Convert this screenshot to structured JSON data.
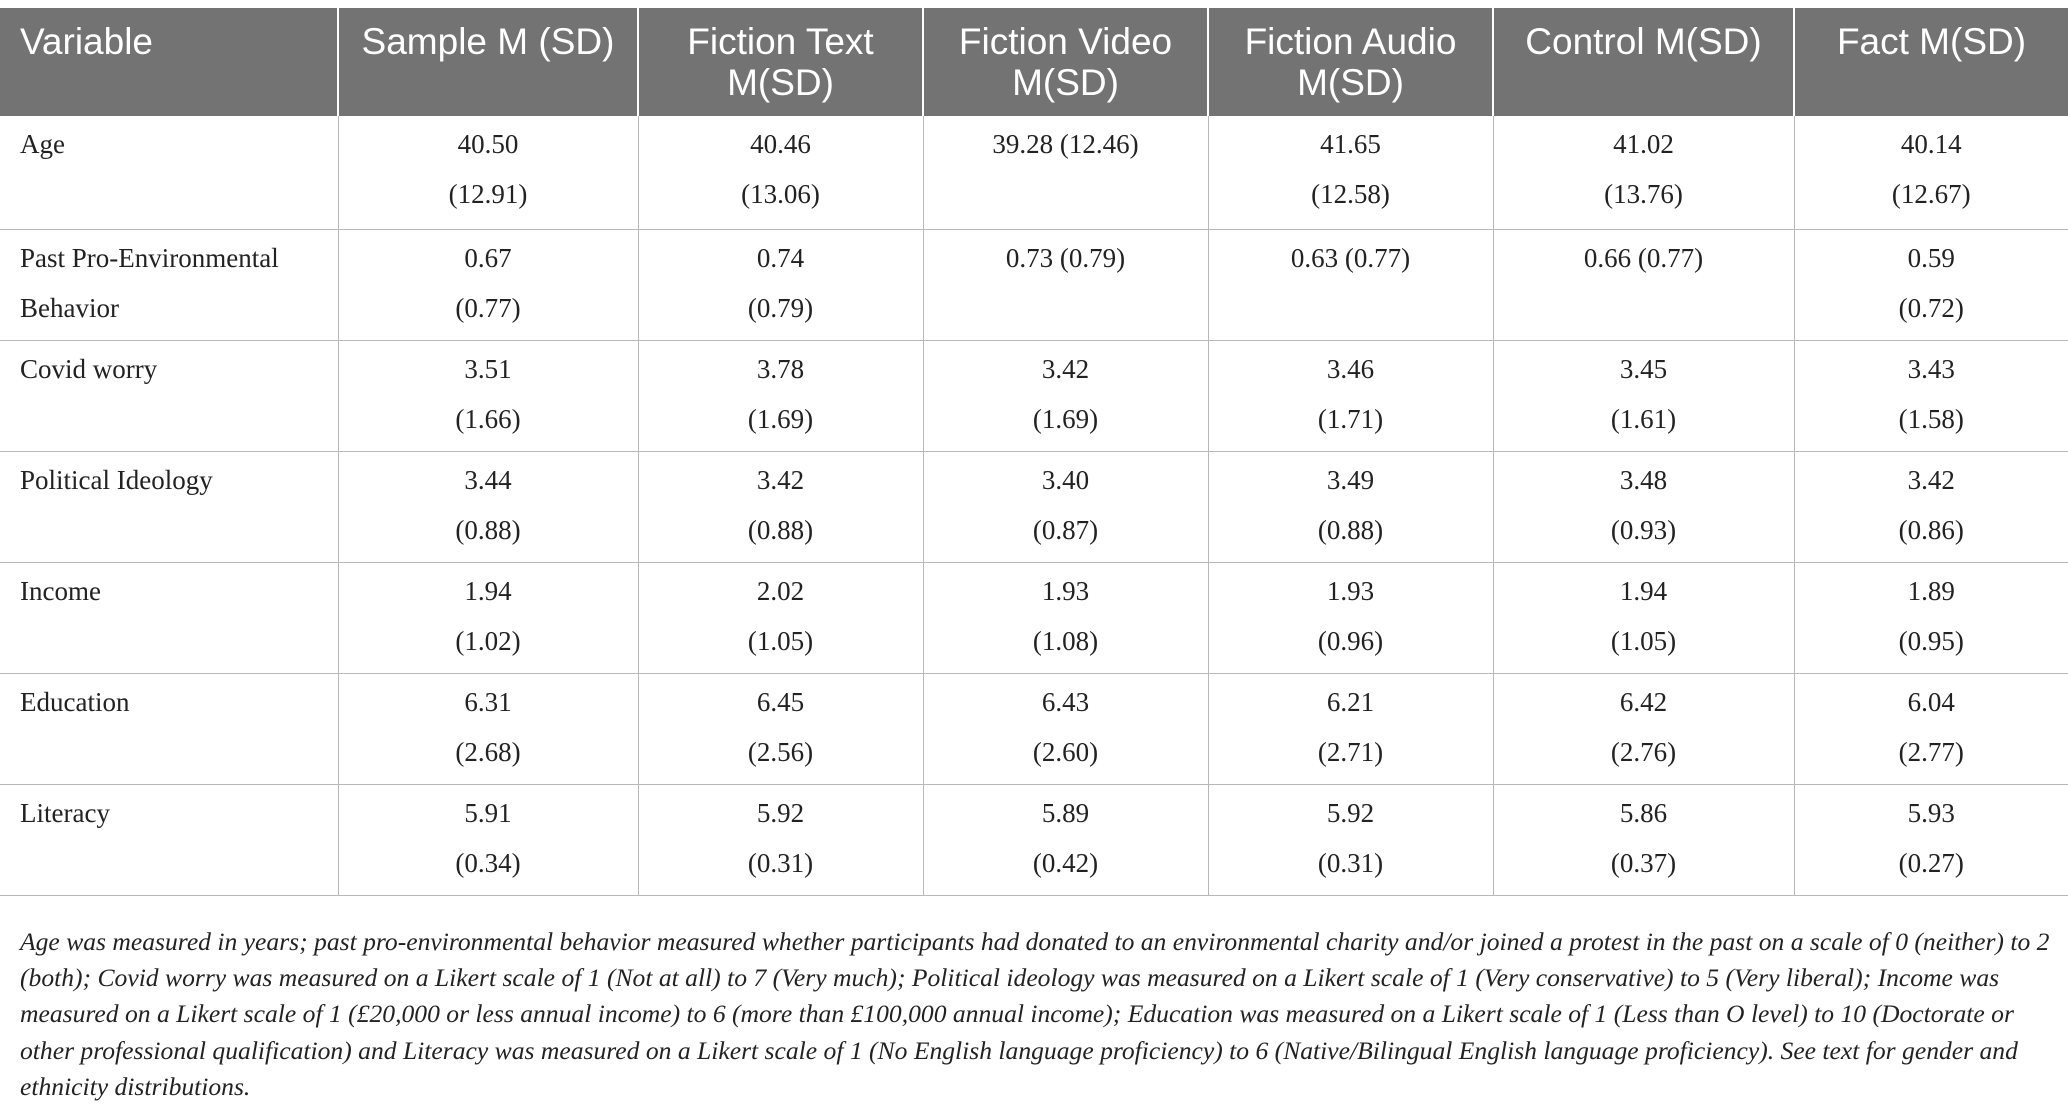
{
  "table": {
    "headers": [
      "Variable",
      "Sample M (SD)",
      "Fiction Text M(SD)",
      "Fiction Video M(SD)",
      "Fiction Audio M(SD)",
      "Control M(SD)",
      "Fact M(SD)"
    ],
    "rows": [
      {
        "label": "Age",
        "cells": [
          [
            "40.50",
            "(12.91)"
          ],
          [
            "40.46",
            "(13.06)"
          ],
          [
            "39.28 (12.46)"
          ],
          [
            "41.65",
            "(12.58)"
          ],
          [
            "41.02",
            "(13.76)"
          ],
          [
            "40.14",
            "(12.67)"
          ]
        ]
      },
      {
        "label": "Past Pro-Environmental Behavior",
        "cells": [
          [
            "0.67",
            "(0.77)"
          ],
          [
            "0.74",
            "(0.79)"
          ],
          [
            "0.73 (0.79)"
          ],
          [
            "0.63 (0.77)"
          ],
          [
            "0.66 (0.77)"
          ],
          [
            "0.59",
            "(0.72)"
          ]
        ]
      },
      {
        "label": "Covid worry",
        "cells": [
          [
            "3.51",
            "(1.66)"
          ],
          [
            "3.78",
            "(1.69)"
          ],
          [
            "3.42",
            "(1.69)"
          ],
          [
            "3.46",
            "(1.71)"
          ],
          [
            "3.45",
            "(1.61)"
          ],
          [
            "3.43",
            "(1.58)"
          ]
        ]
      },
      {
        "label": "Political Ideology",
        "cells": [
          [
            "3.44",
            "(0.88)"
          ],
          [
            "3.42",
            "(0.88)"
          ],
          [
            "3.40",
            "(0.87)"
          ],
          [
            "3.49",
            "(0.88)"
          ],
          [
            "3.48",
            "(0.93)"
          ],
          [
            "3.42",
            "(0.86)"
          ]
        ]
      },
      {
        "label": "Income",
        "cells": [
          [
            "1.94",
            "(1.02)"
          ],
          [
            "2.02",
            "(1.05)"
          ],
          [
            "1.93",
            "(1.08)"
          ],
          [
            "1.93",
            "(0.96)"
          ],
          [
            "1.94",
            "(1.05)"
          ],
          [
            "1.89",
            "(0.95)"
          ]
        ]
      },
      {
        "label": "Education",
        "cells": [
          [
            "6.31",
            "(2.68)"
          ],
          [
            "6.45",
            "(2.56)"
          ],
          [
            "6.43",
            "(2.60)"
          ],
          [
            "6.21",
            "(2.71)"
          ],
          [
            "6.42",
            "(2.76)"
          ],
          [
            "6.04",
            "(2.77)"
          ]
        ]
      },
      {
        "label": "Literacy",
        "cells": [
          [
            "5.91",
            "(0.34)"
          ],
          [
            "5.92",
            "(0.31)"
          ],
          [
            "5.89",
            "(0.42)"
          ],
          [
            "5.92",
            "(0.31)"
          ],
          [
            "5.86",
            "(0.37)"
          ],
          [
            "5.93",
            "(0.27)"
          ]
        ]
      }
    ]
  },
  "footnote": "Age was measured in years; past pro-environmental behavior measured whether participants had donated to an environmental charity and/or joined a protest in the past on a scale of 0 (neither) to 2 (both); Covid worry was measured on a Likert scale of 1 (Not at all) to 7 (Very much); Political ideology was measured on a Likert scale of 1 (Very conservative) to 5 (Very liberal); Income was measured on a Likert scale of 1 (£20,000 or less annual income) to 6 (more than £100,000 annual income); Education was measured on a Likert scale of 1 (Less than O level) to 10 (Doctorate or other professional qualification) and Literacy was measured on a Likert scale of 1 (No English language proficiency) to 6 (Native/Bilingual English language proficiency). See text for gender and ethnicity distributions.",
  "colors": {
    "header_bg": "#737373",
    "header_text": "#ffffff",
    "rule": "#b8b8b8",
    "body_text": "#222222"
  }
}
